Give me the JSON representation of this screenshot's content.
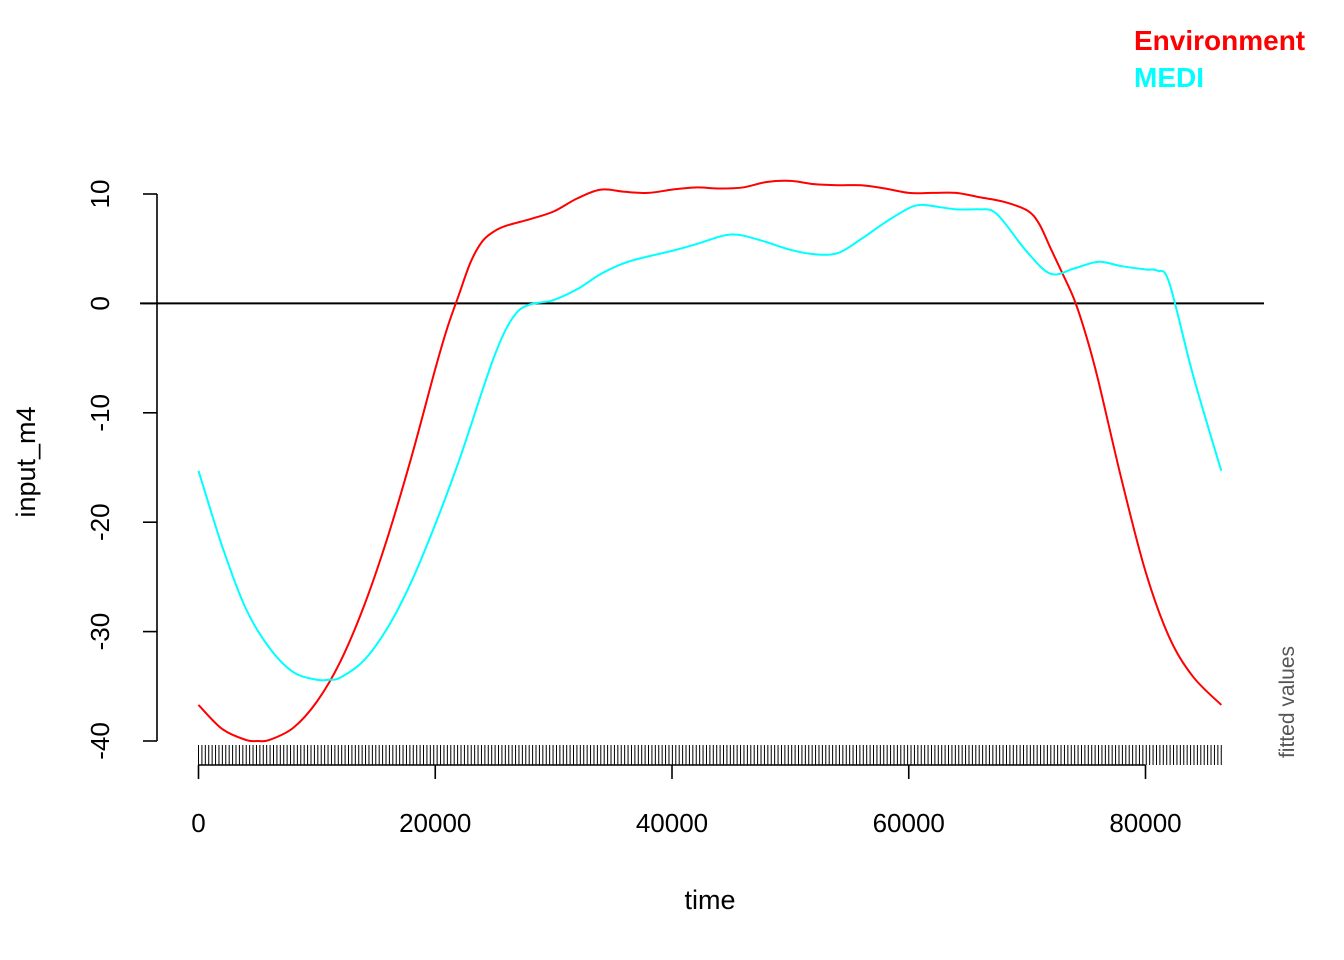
{
  "chart_data": {
    "type": "line",
    "xlabel": "time",
    "ylabel": "input_m4",
    "side_note": "fitted values",
    "xlim": [
      0,
      90000
    ],
    "ylim": [
      -40,
      10
    ],
    "x_ticks": [
      0,
      20000,
      40000,
      60000,
      80000
    ],
    "y_ticks": [
      -40,
      -30,
      -20,
      -10,
      0,
      10
    ],
    "reference_line_y": 0,
    "rug": true,
    "rug_range": [
      0,
      86400
    ],
    "legend": {
      "placement": "top-right",
      "position": "outside"
    },
    "series": [
      {
        "name": "Environment",
        "color": "#ff0000",
        "x": [
          0,
          2000,
          4000,
          5000,
          6000,
          8000,
          10000,
          12000,
          14000,
          16000,
          18000,
          20000,
          21000,
          22000,
          23000,
          24000,
          25000,
          26000,
          28000,
          30000,
          32000,
          34000,
          36000,
          38000,
          40000,
          42000,
          44000,
          46000,
          48000,
          50000,
          52000,
          54000,
          56000,
          58000,
          60000,
          62000,
          64000,
          66000,
          68000,
          70000,
          71000,
          72000,
          73000,
          74000,
          75000,
          76000,
          78000,
          80000,
          82000,
          84000,
          86400
        ],
        "y": [
          -36.7,
          -38.9,
          -39.9,
          -40.0,
          -39.9,
          -38.8,
          -36.4,
          -32.7,
          -27.6,
          -21.3,
          -14.0,
          -6.0,
          -2.3,
          0.8,
          3.8,
          5.7,
          6.6,
          7.1,
          7.7,
          8.4,
          9.6,
          10.4,
          10.2,
          10.1,
          10.4,
          10.6,
          10.5,
          10.6,
          11.1,
          11.2,
          10.9,
          10.8,
          10.8,
          10.5,
          10.1,
          10.1,
          10.1,
          9.7,
          9.3,
          8.5,
          7.3,
          5.0,
          2.7,
          0.3,
          -3.0,
          -7.0,
          -16.2,
          -24.5,
          -30.5,
          -34.1,
          -36.7
        ]
      },
      {
        "name": "MEDI",
        "color": "#00ffff",
        "x": [
          0,
          2000,
          4000,
          6000,
          8000,
          10000,
          11000,
          12000,
          14000,
          16000,
          18000,
          20000,
          22000,
          24000,
          25000,
          26000,
          27000,
          28000,
          29000,
          30000,
          32000,
          34000,
          36000,
          38000,
          40000,
          42000,
          44000,
          45000,
          46000,
          48000,
          50000,
          52000,
          54000,
          56000,
          58000,
          60000,
          61000,
          62000,
          64000,
          66000,
          67000,
          68000,
          70000,
          72000,
          74000,
          76000,
          78000,
          80000,
          81000,
          82000,
          84000,
          86400
        ],
        "y": [
          -15.3,
          -22.2,
          -27.9,
          -31.5,
          -33.7,
          -34.4,
          -34.4,
          -34.2,
          -32.6,
          -29.6,
          -25.4,
          -20.2,
          -14.4,
          -7.9,
          -4.8,
          -2.3,
          -0.7,
          -0.1,
          0.1,
          0.3,
          1.3,
          2.7,
          3.7,
          4.3,
          4.8,
          5.4,
          6.1,
          6.3,
          6.2,
          5.6,
          4.9,
          4.5,
          4.6,
          5.9,
          7.4,
          8.7,
          9.0,
          8.9,
          8.6,
          8.6,
          8.5,
          7.5,
          4.7,
          2.7,
          3.2,
          3.8,
          3.4,
          3.1,
          3.0,
          1.9,
          -6.5,
          -15.3
        ]
      }
    ]
  }
}
